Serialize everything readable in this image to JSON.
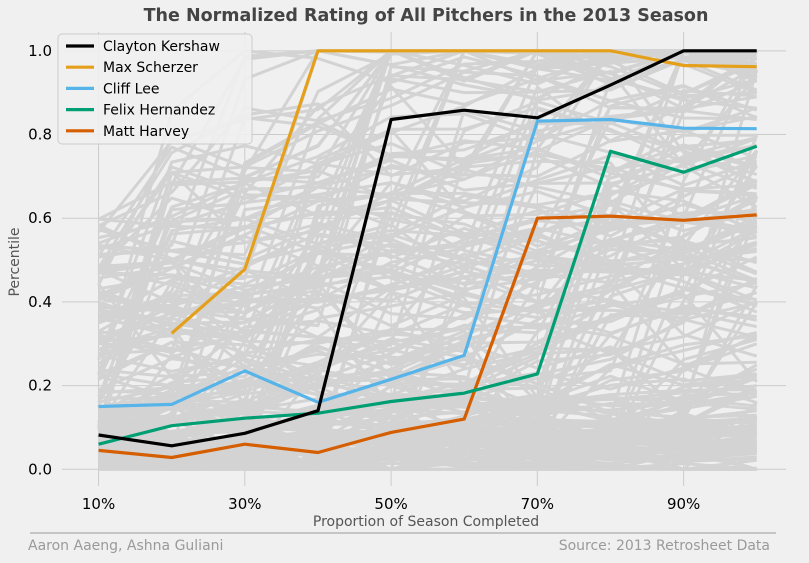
{
  "chart_data": {
    "type": "line",
    "title": "The Normalized Rating of All Pitchers in the 2013 Season",
    "xlabel": "Proportion of Season Completed",
    "ylabel": "Percentile",
    "x": [
      10,
      20,
      30,
      40,
      50,
      60,
      70,
      80,
      90,
      100
    ],
    "x_unit": "%",
    "xlim": [
      10,
      100
    ],
    "xticks": [
      "10%",
      "30%",
      "50%",
      "70%",
      "90%"
    ],
    "ylim": [
      0,
      1
    ],
    "yticks": [
      "0.0",
      "0.2",
      "0.4",
      "0.6",
      "0.8",
      "1.0"
    ],
    "grid": true,
    "legend_position": "top-left",
    "background_series": {
      "color": "#d3d3d3",
      "description": "many other pitchers"
    },
    "series": [
      {
        "name": "Clayton Kershaw",
        "color": "#000000",
        "values": [
          0.082,
          0.056,
          0.086,
          0.14,
          0.836,
          0.858,
          0.84,
          0.918,
          1.0,
          1.0
        ]
      },
      {
        "name": "Max Scherzer",
        "color": "#e5a01b",
        "values": [
          null,
          0.325,
          0.478,
          1.0,
          1.0,
          1.0,
          1.0,
          1.0,
          0.965,
          0.962
        ]
      },
      {
        "name": "Cliff Lee",
        "color": "#56b4e9",
        "values": [
          0.15,
          0.155,
          0.235,
          0.16,
          0.215,
          0.272,
          0.832,
          0.836,
          0.815,
          0.814
        ]
      },
      {
        "name": "Felix Hernandez",
        "color": "#009e73",
        "values": [
          0.06,
          0.104,
          0.122,
          0.134,
          0.162,
          0.182,
          0.228,
          0.76,
          0.71,
          0.772
        ]
      },
      {
        "name": "Matt Harvey",
        "color": "#d55e00",
        "values": [
          0.045,
          0.028,
          0.06,
          0.04,
          0.088,
          0.12,
          0.6,
          0.605,
          0.595,
          0.608
        ]
      }
    ]
  },
  "footer": {
    "left": "Aaron Aaeng, Ashna Guliani",
    "right": "Source: 2013 Retrosheet Data"
  }
}
